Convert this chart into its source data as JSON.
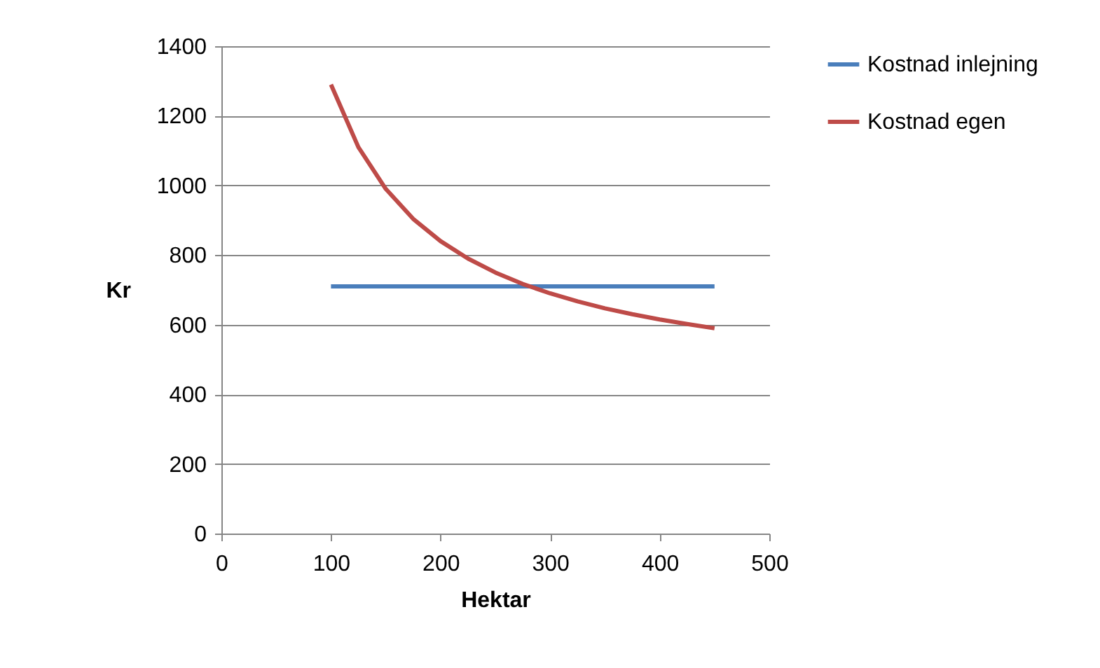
{
  "chart_data": {
    "type": "line",
    "xlabel": "Hektar",
    "ylabel": "Kr",
    "xlim": [
      0,
      500
    ],
    "xticks": [
      0,
      100,
      200,
      300,
      400,
      500
    ],
    "ylim": [
      0,
      1400
    ],
    "yticks": [
      0,
      200,
      400,
      600,
      800,
      1000,
      1200,
      1400
    ],
    "grid": "y",
    "legend": "right",
    "marker": "none",
    "line_style": "solid",
    "series": [
      {
        "name": "Kostnad inlejning",
        "color": "#4a7ebb",
        "x": [
          100,
          450
        ],
        "values": [
          710,
          710
        ]
      },
      {
        "name": "Kostnad egen",
        "color": "#be4b48",
        "x": [
          100,
          125,
          150,
          175,
          200,
          225,
          250,
          275,
          300,
          325,
          350,
          375,
          400,
          425,
          450
        ],
        "values": [
          1290,
          1110,
          990,
          904,
          840,
          790,
          750,
          717,
          690,
          667,
          647,
          630,
          615,
          602,
          590
        ]
      }
    ]
  }
}
